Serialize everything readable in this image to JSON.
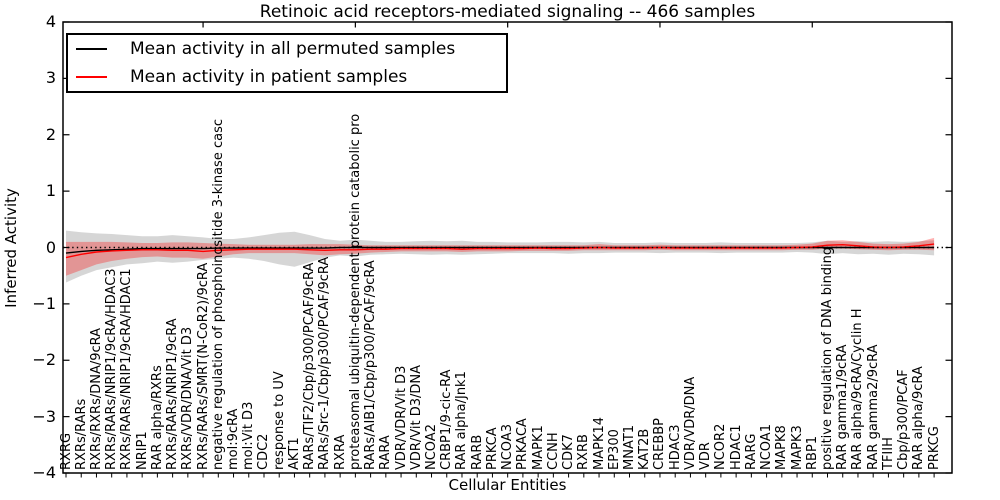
{
  "chart_data": {
    "type": "line",
    "title": "Retinoic acid receptors-mediated signaling -- 466 samples",
    "xlabel": "Cellular Entities",
    "ylabel": "Inferred Activity",
    "ylim": [
      -4,
      4
    ],
    "ytick_values": [
      4,
      3,
      2,
      1,
      0,
      -1,
      -2,
      -3,
      -4
    ],
    "ytick_labels": [
      "4",
      "3",
      "2",
      "1",
      "0",
      "−1",
      "−2",
      "−3",
      "−4"
    ],
    "grid": false,
    "legend_position": "upper left",
    "zero_reference_line": {
      "value": 0,
      "style": "dotted",
      "color": "#000000"
    },
    "top_tick_indices": [
      9,
      19,
      29,
      39,
      49
    ],
    "categories": [
      "RXRG",
      "RXRs/RARs",
      "RXRs/RXRs/DNA/9cRA",
      "RXRs/RARs/NRIP1/9cRA/HDAC3",
      "RXRs/RARs/NRIP1/9cRA/HDAC1",
      "NRIP1",
      "RAR alpha/RXRs",
      "RXRs/RARs/NRIP1/9cRA",
      "RXRs/VDR/DNA/Vit D3",
      "RXRs/RARs/SMRT(N-CoR2)/9cRA",
      "negative regulation of phosphoinositide 3-kinase casc",
      "mol:9cRA",
      "mol:Vit D3",
      "CDC2",
      "response to UV",
      "AKT1",
      "RARs/TIF2/Cbp/p300/PCAF/9cRA",
      "RARs/Src-1/Cbp/p300/PCAF/9cRA",
      "RXRA",
      "proteasomal ubiquitin-dependent protein catabolic pro",
      "RARs/AIB1/Cbp/p300/PCAF/9cRA",
      "RARA",
      "VDR/VDR/Vit D3",
      "VDR/Vit D3/DNA",
      "NCOA2",
      "CRBP1/9-cic-RA",
      "RAR alpha/Jnk1",
      "RARB",
      "PRKCA",
      "NCOA3",
      "PRKACA",
      "MAPK1",
      "CCNH",
      "CDK7",
      "RXRB",
      "MAPK14",
      "EP300",
      "MNAT1",
      "KAT2B",
      "CREBBP",
      "HDAC3",
      "VDR/VDR/DNA",
      "VDR",
      "NCOR2",
      "HDAC1",
      "RARG",
      "NCOA1",
      "MAPK8",
      "MAPK3",
      "RBP1",
      "positive regulation of DNA binding",
      "RAR gamma1/9cRA",
      "RAR alpha/9cRA/Cyclin H",
      "RAR gamma2/9cRA",
      "TFIIH",
      "Cbp/p300/PCAF",
      "RAR alpha/9cRA",
      "PRKCG"
    ],
    "series": [
      {
        "name": "Mean activity in all permuted samples",
        "color": "#000000",
        "band_color": "rgba(128,128,128,0.32)",
        "mean": [
          -0.1,
          -0.07,
          -0.05,
          -0.04,
          -0.03,
          -0.02,
          -0.02,
          -0.02,
          -0.02,
          -0.02,
          -0.01,
          -0.01,
          -0.01,
          -0.01,
          -0.01,
          -0.01,
          -0.01,
          -0.01,
          0,
          0,
          0,
          0,
          0,
          0,
          0,
          0,
          0,
          0,
          0,
          0,
          0,
          0,
          0,
          0,
          0,
          0,
          0,
          0,
          0,
          0,
          0,
          0,
          0,
          0,
          0,
          0,
          0,
          0,
          0,
          0,
          0,
          0,
          0,
          0,
          0,
          0,
          0,
          0
        ],
        "band_lo": [
          -0.62,
          -0.5,
          -0.4,
          -0.35,
          -0.3,
          -0.28,
          -0.25,
          -0.27,
          -0.25,
          -0.22,
          -0.2,
          -0.18,
          -0.2,
          -0.24,
          -0.3,
          -0.34,
          -0.26,
          -0.18,
          -0.14,
          -0.16,
          -0.13,
          -0.12,
          -0.11,
          -0.12,
          -0.13,
          -0.12,
          -0.13,
          -0.12,
          -0.11,
          -0.1,
          -0.1,
          -0.1,
          -0.1,
          -0.11,
          -0.1,
          -0.1,
          -0.09,
          -0.09,
          -0.09,
          -0.1,
          -0.09,
          -0.09,
          -0.09,
          -0.1,
          -0.09,
          -0.09,
          -0.09,
          -0.09,
          -0.08,
          -0.09,
          -0.12,
          -0.1,
          -0.12,
          -0.11,
          -0.13,
          -0.11,
          -0.12,
          -0.14
        ],
        "band_hi": [
          0.3,
          0.27,
          0.25,
          0.24,
          0.22,
          0.2,
          0.2,
          0.22,
          0.2,
          0.18,
          0.15,
          0.15,
          0.18,
          0.22,
          0.26,
          0.28,
          0.22,
          0.15,
          0.12,
          0.14,
          0.12,
          0.1,
          0.1,
          0.11,
          0.12,
          0.11,
          0.12,
          0.1,
          0.1,
          0.09,
          0.09,
          0.09,
          0.1,
          0.1,
          0.09,
          0.1,
          0.08,
          0.08,
          0.08,
          0.09,
          0.08,
          0.08,
          0.08,
          0.09,
          0.08,
          0.08,
          0.08,
          0.08,
          0.08,
          0.09,
          0.12,
          0.1,
          0.11,
          0.1,
          0.11,
          0.1,
          0.11,
          0.13
        ]
      },
      {
        "name": "Mean activity in patient samples",
        "color": "#ff0000",
        "band_color": "rgba(255,0,0,0.30)",
        "mean": [
          -0.18,
          -0.12,
          -0.08,
          -0.06,
          -0.05,
          -0.04,
          -0.04,
          -0.05,
          -0.05,
          -0.07,
          -0.05,
          -0.04,
          -0.03,
          -0.03,
          -0.03,
          -0.03,
          -0.04,
          -0.05,
          -0.04,
          -0.04,
          -0.03,
          -0.03,
          -0.02,
          -0.02,
          -0.02,
          -0.02,
          -0.03,
          -0.02,
          -0.02,
          -0.02,
          -0.02,
          -0.01,
          -0.02,
          -0.02,
          -0.01,
          0,
          -0.01,
          -0.01,
          -0.01,
          0,
          -0.01,
          -0.01,
          -0.01,
          -0.01,
          -0.01,
          -0.01,
          -0.01,
          -0.01,
          0,
          0.01,
          0.04,
          0.05,
          0.03,
          0.01,
          0,
          0.01,
          0.03,
          0.06
        ],
        "band_lo": [
          -0.5,
          -0.4,
          -0.3,
          -0.24,
          -0.2,
          -0.17,
          -0.16,
          -0.18,
          -0.18,
          -0.2,
          -0.16,
          -0.12,
          -0.1,
          -0.1,
          -0.1,
          -0.1,
          -0.12,
          -0.14,
          -0.12,
          -0.11,
          -0.09,
          -0.08,
          -0.07,
          -0.07,
          -0.07,
          -0.07,
          -0.08,
          -0.07,
          -0.07,
          -0.07,
          -0.06,
          -0.06,
          -0.06,
          -0.06,
          -0.05,
          -0.05,
          -0.05,
          -0.05,
          -0.05,
          -0.04,
          -0.05,
          -0.05,
          -0.05,
          -0.05,
          -0.05,
          -0.05,
          -0.05,
          -0.05,
          -0.04,
          -0.04,
          -0.02,
          -0.02,
          -0.03,
          -0.04,
          -0.05,
          -0.04,
          -0.04,
          -0.05
        ],
        "band_hi": [
          0.1,
          0.1,
          0.1,
          0.1,
          0.09,
          0.08,
          0.08,
          0.09,
          0.09,
          0.08,
          0.07,
          0.06,
          0.05,
          0.05,
          0.05,
          0.05,
          0.06,
          0.06,
          0.06,
          0.05,
          0.04,
          0.04,
          0.04,
          0.04,
          0.04,
          0.04,
          0.04,
          0.04,
          0.04,
          0.04,
          0.04,
          0.04,
          0.04,
          0.04,
          0.04,
          0.06,
          0.04,
          0.04,
          0.04,
          0.05,
          0.04,
          0.04,
          0.04,
          0.04,
          0.04,
          0.04,
          0.04,
          0.04,
          0.05,
          0.07,
          0.12,
          0.13,
          0.1,
          0.07,
          0.06,
          0.07,
          0.1,
          0.17
        ]
      }
    ]
  }
}
